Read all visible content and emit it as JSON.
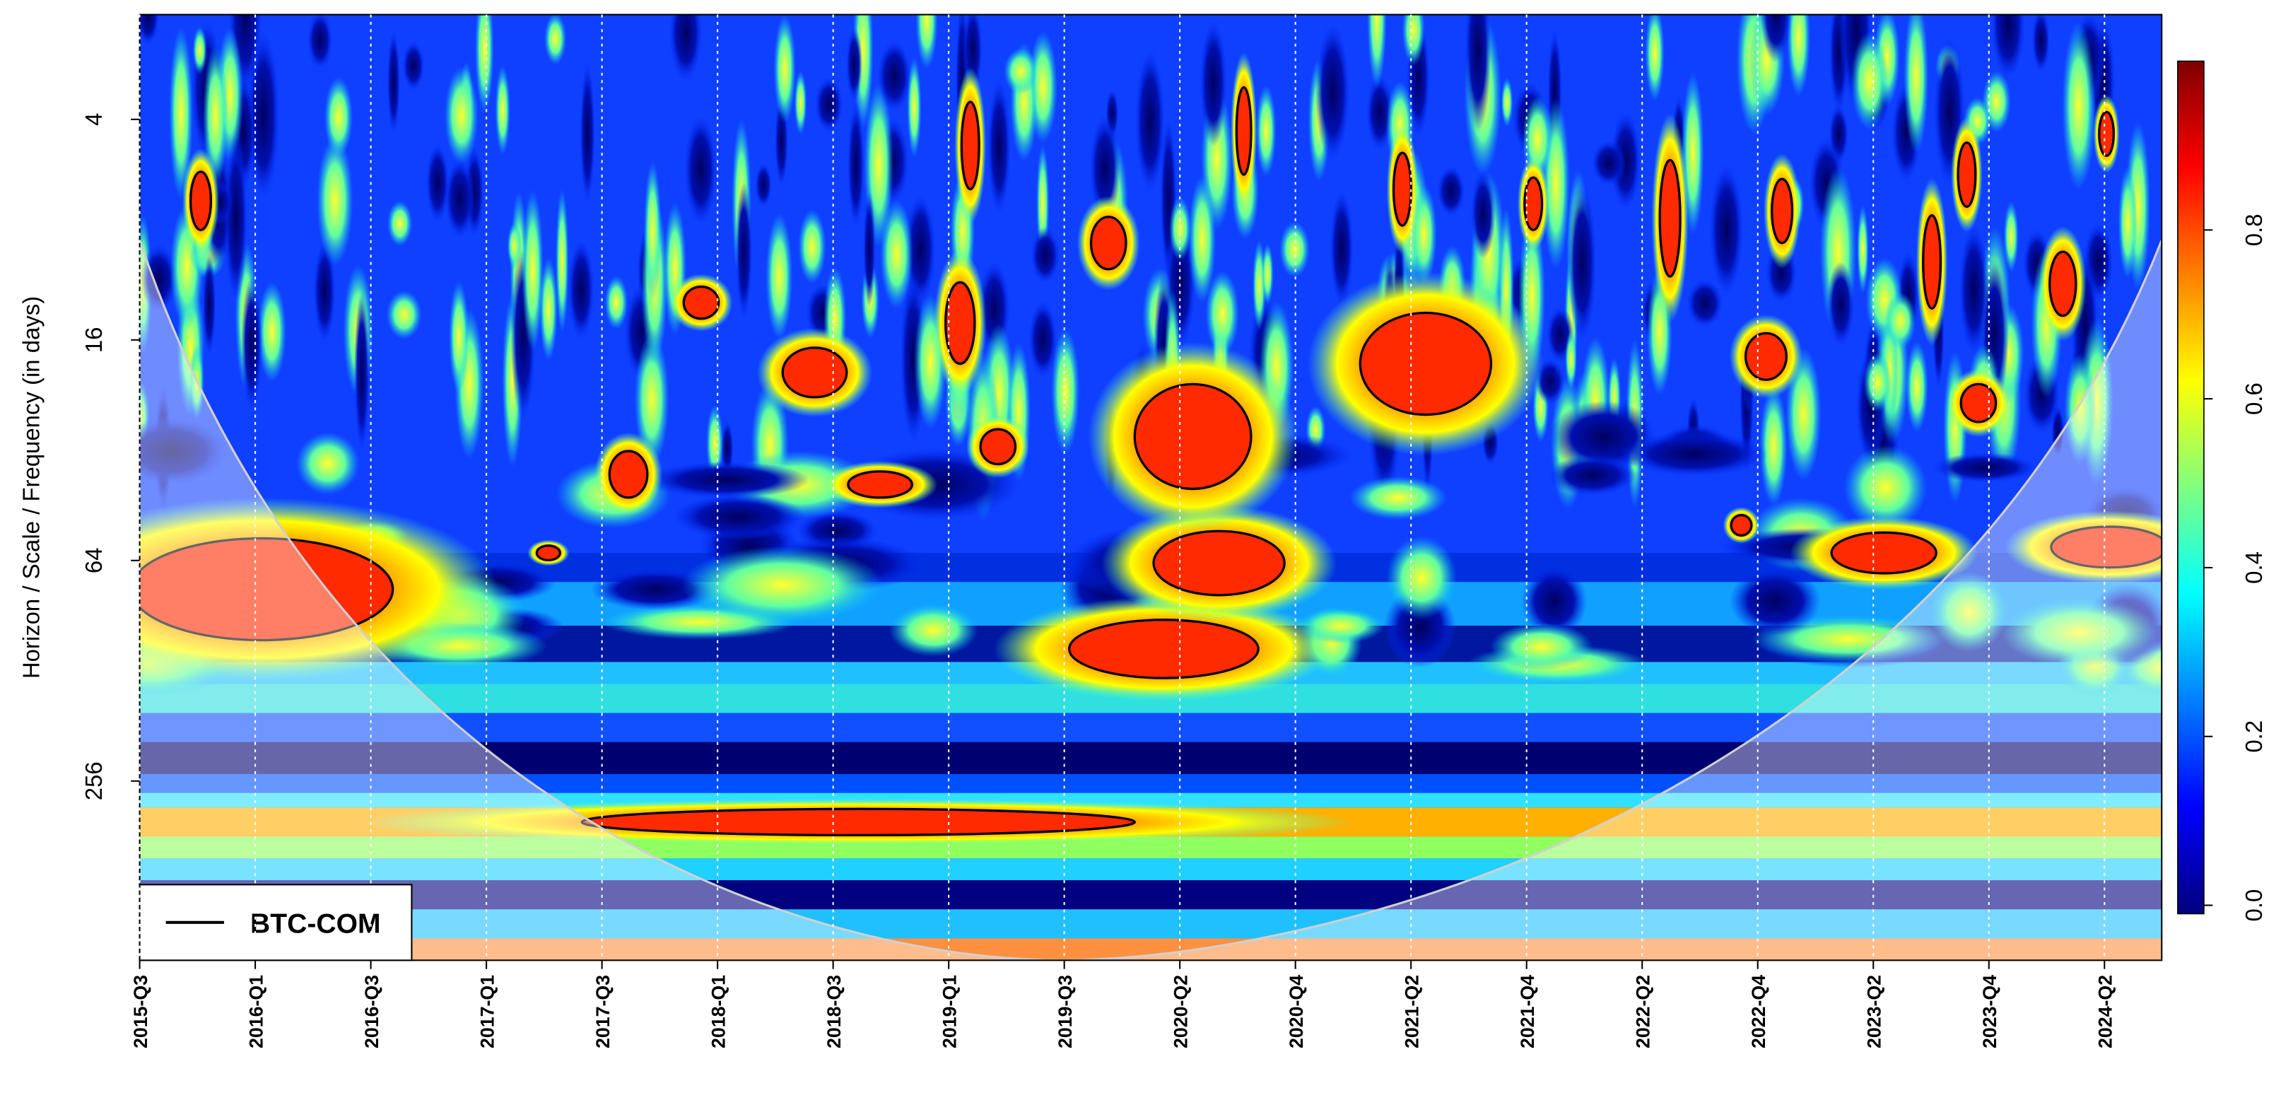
{
  "chart_data": {
    "type": "heatmap",
    "y_label": "Horizon / Scale / Frequency (in days)",
    "categories": [
      "2015-Q3",
      "2016-Q1",
      "2016-Q3",
      "2017-Q1",
      "2017-Q3",
      "2018-Q1",
      "2018-Q3",
      "2019-Q1",
      "2019-Q3",
      "2020-Q2",
      "2020-Q4",
      "2021-Q2",
      "2021-Q4",
      "2022-Q2",
      "2022-Q4",
      "2023-Q2",
      "2023-Q4",
      "2024-Q2"
    ],
    "yticks": [
      4,
      16,
      64,
      256
    ],
    "ylim": [
      2.07,
      790
    ],
    "log_y": true,
    "grid": true,
    "legend": {
      "label": "BTC-COM",
      "position": "lower left"
    },
    "colorbar": {
      "ticks": [
        {
          "value": 0,
          "label": "0.0"
        },
        0.2,
        0.4,
        0.6,
        0.8
      ],
      "lim": [
        -0.01,
        1.0
      ],
      "colors": [
        "#00007f",
        "#0000ff",
        "#007fff",
        "#00ffff",
        "#7fff7f",
        "#ffff00",
        "#ff7f00",
        "#ff0000",
        "#7f0000"
      ]
    }
  }
}
